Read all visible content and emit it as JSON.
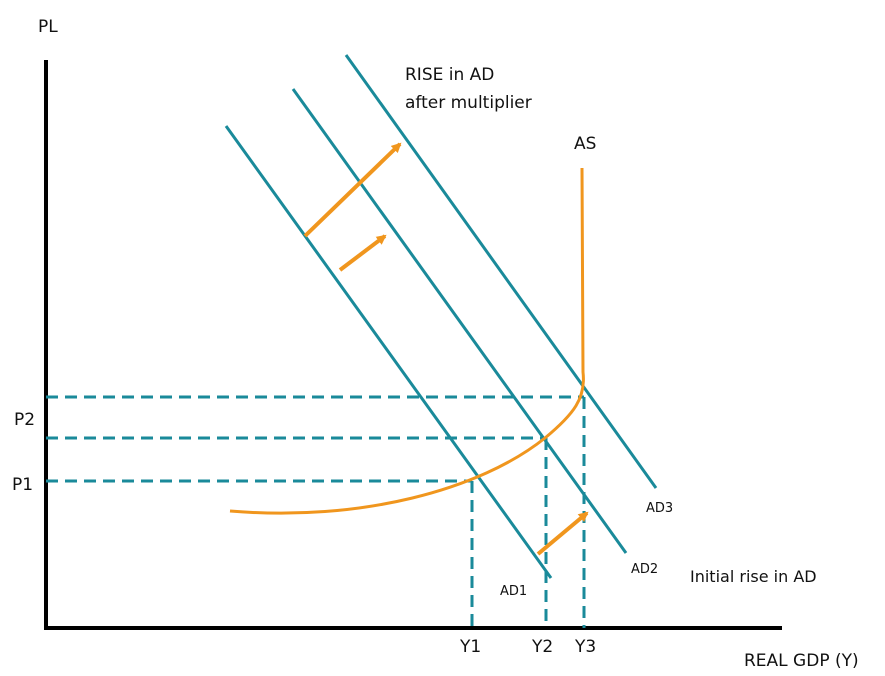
{
  "colors": {
    "axis": "#000000",
    "ad_curves": "#1a8a9a",
    "as_curve": "#f0961e",
    "shift_arrows": "#f0961e",
    "guides": "#1a8a9a"
  },
  "axes": {
    "y_label": "PL",
    "x_label": "REAL GDP (Y)"
  },
  "price_levels": [
    "P1",
    "P2"
  ],
  "output_levels": [
    "Y1",
    "Y2",
    "Y3"
  ],
  "curves": {
    "as_label": "AS",
    "ad1_label": "AD1",
    "ad2_label": "AD2",
    "ad3_label": "AD3"
  },
  "annotations": {
    "multiplier_line1": "RISE in AD",
    "multiplier_line2": "after multiplier",
    "initial_rise": "Initial rise in AD"
  }
}
